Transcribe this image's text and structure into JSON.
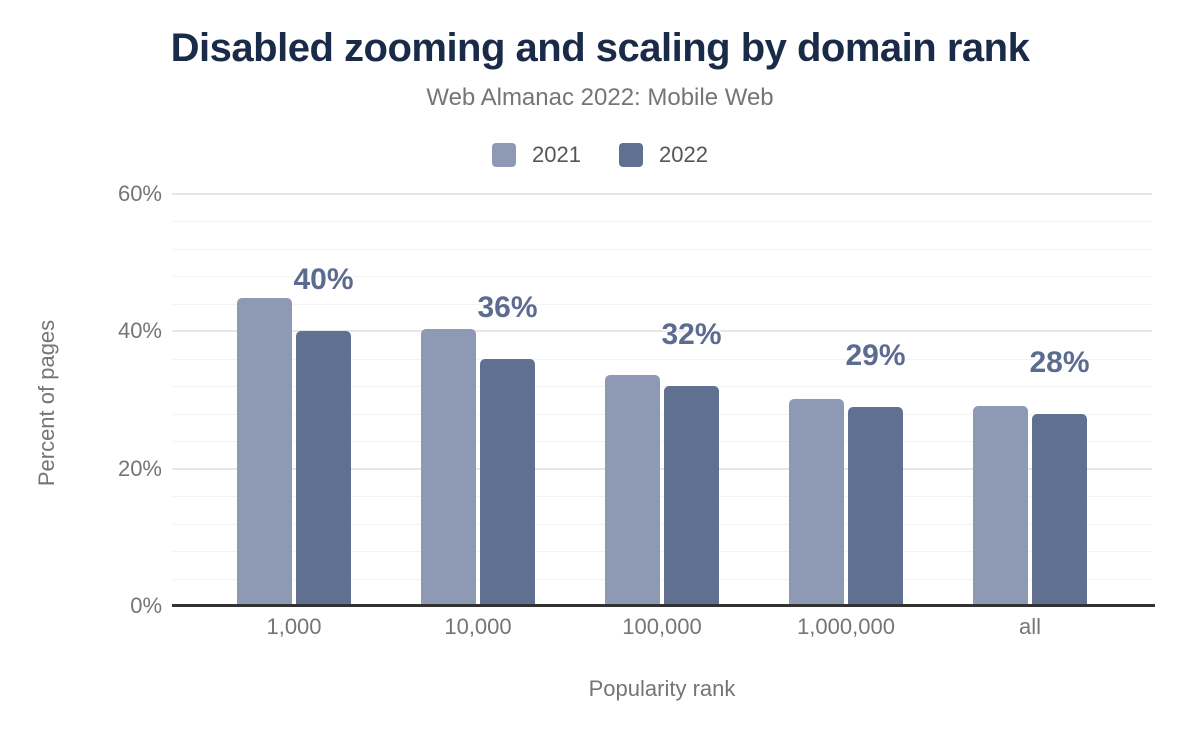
{
  "chart_data": {
    "type": "bar",
    "title": "Disabled zooming and scaling by domain rank",
    "subtitle": "Web Almanac 2022: Mobile Web",
    "xlabel": "Popularity rank",
    "ylabel": "Percent of pages",
    "categories": [
      "1,000",
      "10,000",
      "100,000",
      "1,000,000",
      "all"
    ],
    "series": [
      {
        "name": "2021",
        "color": "#8e9ab4",
        "values": [
          44.8,
          40.4,
          33.7,
          30.2,
          29.1
        ]
      },
      {
        "name": "2022",
        "color": "#5f7090",
        "values": [
          40,
          36,
          32,
          29,
          28
        ],
        "data_labels": [
          "40%",
          "36%",
          "32%",
          "29%",
          "28%"
        ]
      }
    ],
    "ylim": [
      0,
      60
    ],
    "yticks": [
      {
        "value": 0,
        "label": "0%"
      },
      {
        "value": 20,
        "label": "20%"
      },
      {
        "value": 40,
        "label": "40%"
      },
      {
        "value": 60,
        "label": "60%"
      }
    ],
    "minor_gridline_step": 4,
    "grid": true,
    "legend_position": "top",
    "colors": {
      "title": "#1a2b49",
      "subtitle": "#757575",
      "axis_text": "#757575",
      "axis_line": "#323232",
      "major_gridline": "#e6e6e6",
      "minor_gridline": "#f3f3f3",
      "data_label": "#5b6c90"
    }
  }
}
